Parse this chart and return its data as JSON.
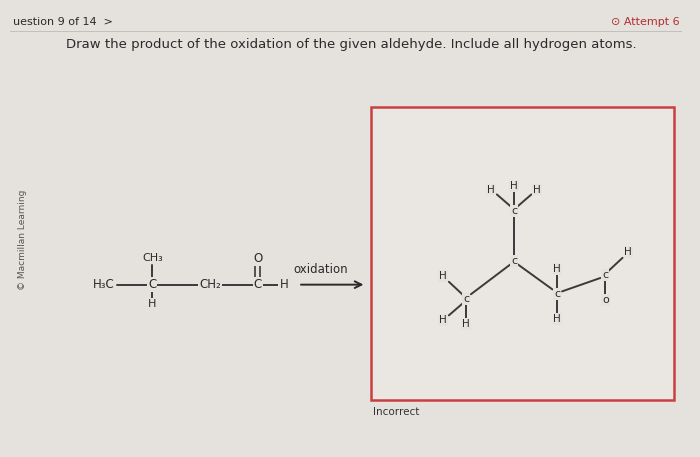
{
  "bg_color": "#e5e1dd",
  "answer_box_bg": "#eae6e2",
  "answer_box_border": "#c94040",
  "title_text": "Draw the product of the oxidation of the given aldehyde. Include all hydrogen atoms.",
  "header_left": "uestion 9 of 14  >",
  "header_right": "⊙ Attempt 6",
  "copyright": "© Macmillan Learning",
  "incorrect_text": "Incorrect",
  "oxidation_label": "oxidation",
  "text_color": "#2a2a2a",
  "bond_color": "#3a3a3a",
  "font_size_title": 9.5,
  "font_size_atoms": 8,
  "font_size_header": 8.5
}
